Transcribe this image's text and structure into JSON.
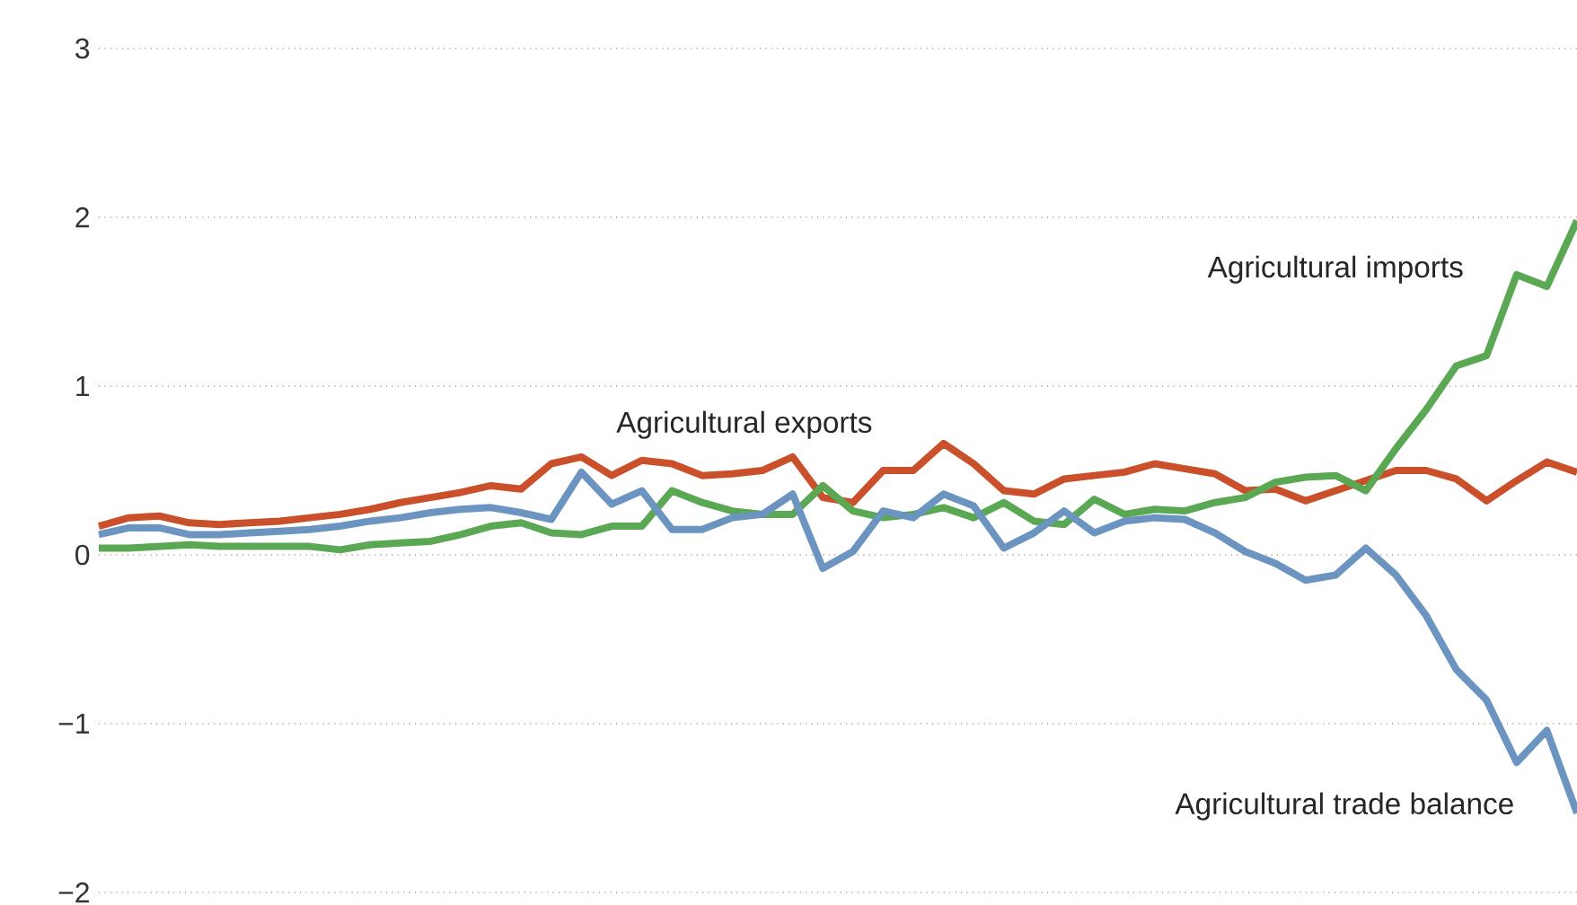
{
  "chart_data": {
    "type": "line",
    "categories": [
      null,
      null,
      null,
      null,
      null,
      null,
      null,
      null,
      null,
      null,
      null,
      null,
      null,
      null,
      null,
      null,
      null,
      null,
      null,
      null,
      null,
      null,
      null,
      null,
      null,
      null,
      null,
      null,
      null,
      null,
      null,
      null,
      null,
      null,
      null,
      null,
      null,
      null,
      null,
      null,
      null,
      null,
      null,
      null,
      null,
      null,
      null,
      null,
      null,
      null
    ],
    "series": [
      {
        "name": "Agricultural exports",
        "color": "#c9502a",
        "values": [
          0.17,
          0.22,
          0.23,
          0.19,
          0.18,
          0.19,
          0.2,
          0.22,
          0.24,
          0.27,
          0.31,
          0.34,
          0.37,
          0.41,
          0.39,
          0.54,
          0.58,
          0.47,
          0.56,
          0.54,
          0.47,
          0.48,
          0.5,
          0.58,
          0.34,
          0.31,
          0.5,
          0.5,
          0.66,
          0.54,
          0.38,
          0.36,
          0.45,
          0.47,
          0.49,
          0.54,
          0.51,
          0.48,
          0.38,
          0.39,
          0.32,
          0.38,
          0.44,
          0.5,
          0.5,
          0.45,
          0.32,
          0.44,
          0.55,
          0.49
        ]
      },
      {
        "name": "Agricultural imports",
        "color": "#5aa854",
        "values": [
          0.04,
          0.04,
          0.05,
          0.06,
          0.05,
          0.05,
          0.05,
          0.05,
          0.03,
          0.06,
          0.07,
          0.08,
          0.12,
          0.17,
          0.19,
          0.13,
          0.12,
          0.17,
          0.17,
          0.38,
          0.31,
          0.26,
          0.24,
          0.24,
          0.41,
          0.26,
          0.22,
          0.24,
          0.28,
          0.22,
          0.31,
          0.2,
          0.18,
          0.33,
          0.24,
          0.27,
          0.26,
          0.31,
          0.34,
          0.43,
          0.46,
          0.47,
          0.38,
          0.63,
          0.86,
          1.12,
          1.18,
          1.66,
          1.59,
          1.98
        ]
      },
      {
        "name": "Agricultural trade balance",
        "color": "#6c94c0",
        "values": [
          0.12,
          0.16,
          0.16,
          0.12,
          0.12,
          0.13,
          0.14,
          0.15,
          0.17,
          0.2,
          0.22,
          0.25,
          0.27,
          0.28,
          0.25,
          0.21,
          0.49,
          0.3,
          0.38,
          0.15,
          0.15,
          0.22,
          0.24,
          0.36,
          -0.08,
          0.02,
          0.26,
          0.22,
          0.36,
          0.29,
          0.04,
          0.13,
          0.26,
          0.13,
          0.2,
          0.22,
          0.21,
          0.13,
          0.02,
          -0.05,
          -0.15,
          -0.12,
          0.04,
          -0.12,
          -0.36,
          -0.68,
          -0.86,
          -1.23,
          -1.04,
          -1.53
        ]
      }
    ],
    "ylim": [
      -2,
      3
    ],
    "yticks": [
      {
        "value": -2,
        "label": "−2"
      },
      {
        "value": -1,
        "label": "−1"
      },
      0,
      1,
      2,
      3
    ],
    "grid": "y",
    "marker": "none",
    "line_style": "solid"
  }
}
